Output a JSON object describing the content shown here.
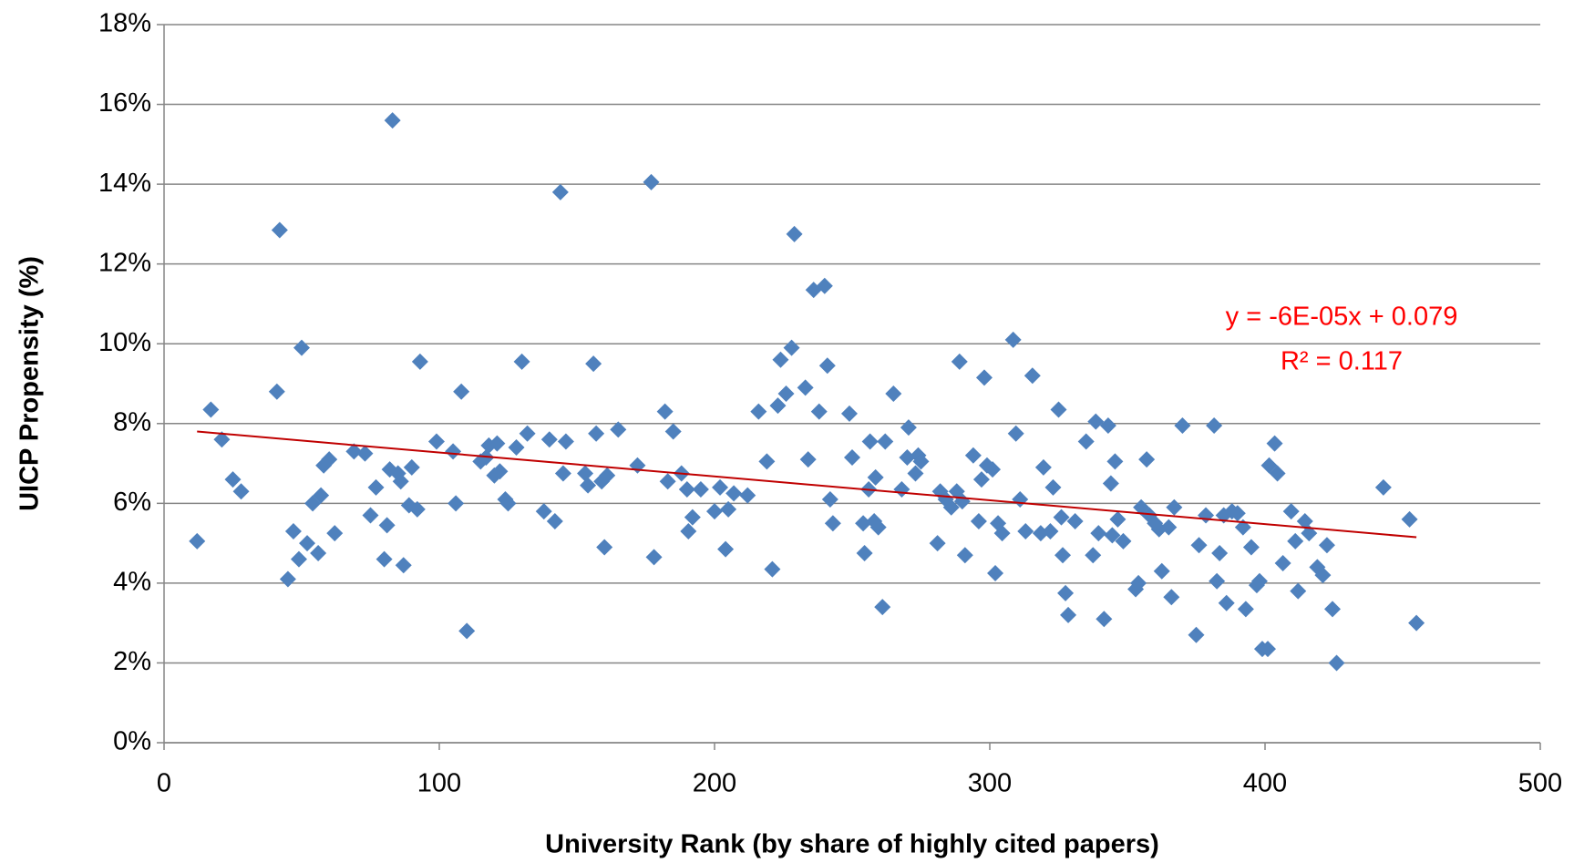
{
  "chart_data": {
    "type": "scatter",
    "x_label": "University Rank (by share of highly cited papers)",
    "y_label": "UICP Propensity (%)",
    "xlim": [
      0,
      500
    ],
    "xticks": [
      0,
      100,
      200,
      300,
      400,
      500
    ],
    "ylim": [
      0,
      18
    ],
    "yticks": [
      {
        "value": 0,
        "label": "0%"
      },
      {
        "value": 2,
        "label": "2%"
      },
      {
        "value": 4,
        "label": "4%"
      },
      {
        "value": 6,
        "label": "6%"
      },
      {
        "value": 8,
        "label": "8%"
      },
      {
        "value": 10,
        "label": "10%"
      },
      {
        "value": 12,
        "label": "12%"
      },
      {
        "value": 14,
        "label": "14%"
      },
      {
        "value": 16,
        "label": "16%"
      },
      {
        "value": 18,
        "label": "18%"
      }
    ],
    "grid": true,
    "color": "#4f81bd",
    "x": [
      12,
      17,
      21,
      25,
      28,
      41,
      42,
      45,
      47,
      49,
      50,
      52,
      54,
      56,
      57,
      58,
      60,
      62,
      69,
      73,
      75,
      77,
      80,
      81,
      82,
      83,
      85,
      86,
      87,
      89,
      90,
      92,
      93,
      99,
      105,
      106,
      108,
      110,
      115,
      117,
      118,
      120,
      121,
      122,
      124,
      125,
      128,
      130,
      132,
      138,
      140,
      142,
      144,
      145,
      146,
      153,
      154,
      156,
      157,
      159,
      160,
      161,
      165,
      172,
      177,
      178,
      182,
      183,
      185,
      188,
      190,
      190.5,
      192,
      195,
      200,
      202,
      204,
      205,
      207,
      212,
      216,
      219,
      221,
      223,
      224,
      226,
      228,
      229,
      233,
      234,
      236,
      238,
      240,
      241,
      242,
      243,
      249,
      250,
      254,
      254.5,
      256,
      256.5,
      258,
      258.5,
      259.5,
      261,
      262,
      265,
      268,
      270,
      270.5,
      273,
      274,
      275,
      281,
      282,
      284,
      286,
      288,
      289,
      290,
      291,
      294,
      296,
      297,
      298,
      299,
      301,
      302,
      303,
      304.5,
      308.5,
      309.5,
      311,
      313,
      315.5,
      318.5,
      319.5,
      322,
      323,
      325,
      326,
      326.5,
      327.5,
      328.5,
      331,
      335,
      337.5,
      338.5,
      339.5,
      341.5,
      343,
      344,
      344.5,
      345.5,
      346.5,
      348.5,
      353,
      354,
      355,
      357,
      358,
      360,
      361.5,
      362.5,
      365,
      366,
      367,
      370,
      375,
      376,
      378.5,
      381.5,
      382.5,
      383.5,
      385,
      386,
      388,
      390,
      392,
      393,
      395,
      397,
      398,
      399,
      401,
      401.5,
      403.5,
      404.5,
      406.5,
      409.5,
      411,
      412,
      414.5,
      416,
      419,
      421,
      422.5,
      424.5,
      426,
      443,
      452.5,
      455
    ],
    "values": [
      5.05,
      8.35,
      7.6,
      6.6,
      6.3,
      8.8,
      12.85,
      4.1,
      5.3,
      4.6,
      9.9,
      5.0,
      6.0,
      4.75,
      6.2,
      6.95,
      7.1,
      5.25,
      7.3,
      7.25,
      5.7,
      6.4,
      4.6,
      5.45,
      6.85,
      15.6,
      6.75,
      6.55,
      4.45,
      5.95,
      6.9,
      5.85,
      9.55,
      7.55,
      7.3,
      6.0,
      8.8,
      2.8,
      7.05,
      7.15,
      7.45,
      6.7,
      7.5,
      6.8,
      6.1,
      6.0,
      7.4,
      9.55,
      7.75,
      5.8,
      7.6,
      5.55,
      13.8,
      6.75,
      7.55,
      6.75,
      6.45,
      9.5,
      7.75,
      6.55,
      4.9,
      6.7,
      7.85,
      6.95,
      14.05,
      4.65,
      8.3,
      6.55,
      7.8,
      6.75,
      6.35,
      5.3,
      5.65,
      6.35,
      5.8,
      6.4,
      4.85,
      5.85,
      6.25,
      6.2,
      8.3,
      7.05,
      4.35,
      8.45,
      9.6,
      8.75,
      9.9,
      12.75,
      8.9,
      7.1,
      11.35,
      8.3,
      11.45,
      9.45,
      6.1,
      5.5,
      8.25,
      7.15,
      5.5,
      4.75,
      6.35,
      7.55,
      5.55,
      6.65,
      5.4,
      3.4,
      7.55,
      8.75,
      6.35,
      7.15,
      7.9,
      6.75,
      7.2,
      7.05,
      5.0,
      6.3,
      6.1,
      5.9,
      6.3,
      9.55,
      6.05,
      4.7,
      7.2,
      5.55,
      6.6,
      9.15,
      6.95,
      6.85,
      4.25,
      5.5,
      5.25,
      10.1,
      7.75,
      6.1,
      5.3,
      9.2,
      5.25,
      6.9,
      5.3,
      6.4,
      8.35,
      5.65,
      4.7,
      3.75,
      3.2,
      5.55,
      7.55,
      4.7,
      8.05,
      5.25,
      3.1,
      7.95,
      6.5,
      5.2,
      7.05,
      5.6,
      5.05,
      3.85,
      4.0,
      5.9,
      7.1,
      5.7,
      5.5,
      5.35,
      4.3,
      5.4,
      3.65,
      5.9,
      7.95,
      2.7,
      4.95,
      5.7,
      7.95,
      4.05,
      4.75,
      5.7,
      3.5,
      5.8,
      5.75,
      5.4,
      3.35,
      4.9,
      3.95,
      4.05,
      2.35,
      2.35,
      6.95,
      7.5,
      6.75,
      4.5,
      5.8,
      5.05,
      3.8,
      5.55,
      5.25,
      4.4,
      4.2,
      4.95,
      3.35,
      2.0,
      6.4,
      5.6,
      3.0
    ],
    "trendline": {
      "x": [
        12,
        455
      ],
      "values": [
        7.8,
        5.15
      ],
      "color": "#c00000"
    },
    "annotations": [
      "y = -6E-05x + 0.079",
      "R² = 0.117"
    ],
    "annotation_color": "#ff0000"
  }
}
